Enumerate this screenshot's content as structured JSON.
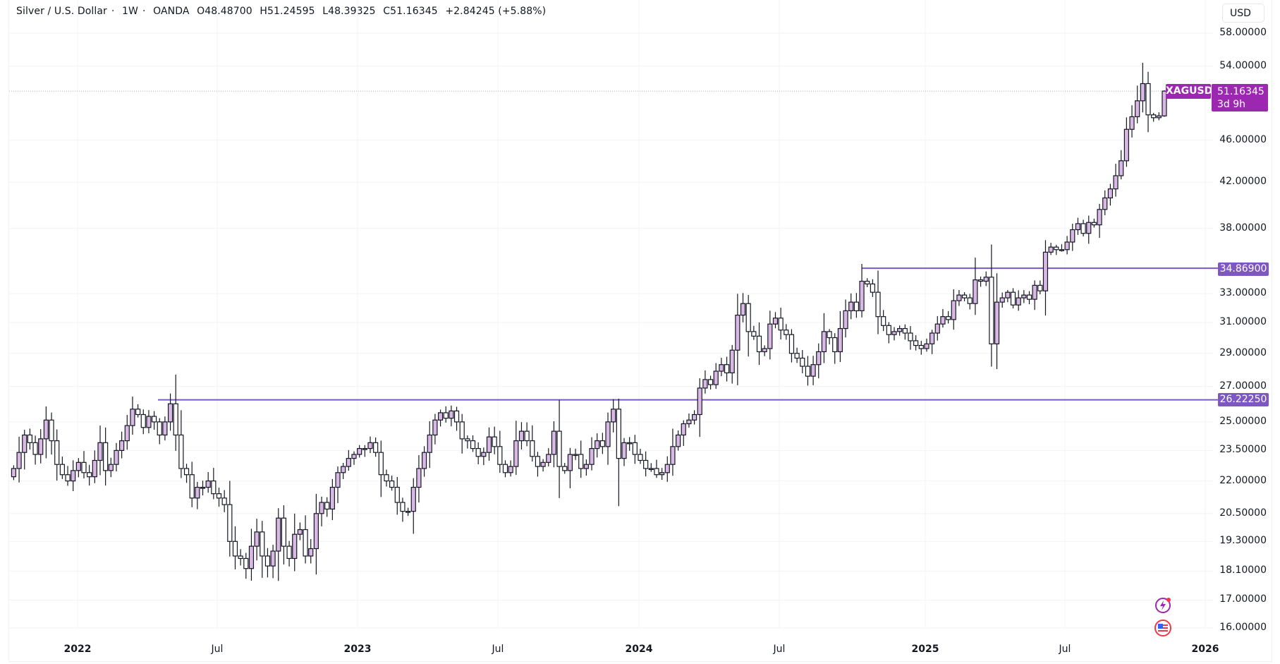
{
  "legend": {
    "symbol_name": "Silver / U.S. Dollar",
    "interval": "1W",
    "exchange": "OANDA",
    "open": "O48.48700",
    "high": "H51.24595",
    "low": "L48.39325",
    "close": "C51.16345",
    "change": "+2.84245 (+5.88%)",
    "separator": "·"
  },
  "price_axis": {
    "currency": "USD",
    "ticks": [
      "58.00000",
      "54.00000",
      "46.00000",
      "42.00000",
      "38.00000",
      "33.00000",
      "31.00000",
      "29.00000",
      "27.00000",
      "25.00000",
      "23.50000",
      "22.00000",
      "20.50000",
      "19.30000",
      "18.10000",
      "17.00000",
      "16.00000"
    ]
  },
  "time_axis": {
    "labels": [
      {
        "text": "2022",
        "year": true
      },
      {
        "text": "Jul",
        "year": false
      },
      {
        "text": "2023",
        "year": true
      },
      {
        "text": "Jul",
        "year": false
      },
      {
        "text": "2024",
        "year": true
      },
      {
        "text": "Jul",
        "year": false
      },
      {
        "text": "2025",
        "year": true
      },
      {
        "text": "Jul",
        "year": false
      },
      {
        "text": "2026",
        "year": true
      }
    ]
  },
  "last_price": {
    "symbol": "XAGUSD",
    "value": "51.16345",
    "countdown": "3d 9h",
    "color": "#9c27b0"
  },
  "horizontal_lines": [
    {
      "label": "34.86900",
      "price": 34.869,
      "color": "#7e57c2"
    },
    {
      "label": "26.22250",
      "price": 26.2225,
      "color": "#7e57c2"
    }
  ],
  "colors": {
    "up_fill": "#d9b8e6",
    "down_fill": "#ffffff",
    "outline": "#131722",
    "grid": "#f3f3f5"
  },
  "icons": [
    "lightning-alert-icon",
    "us-flag-icon"
  ],
  "chart_data": {
    "type": "candlestick",
    "title": "Silver / U.S. Dollar · 1W · OANDA",
    "xlabel": "",
    "ylabel": "USD",
    "y_scale": "log",
    "ylim": [
      15.8,
      59
    ],
    "x_range": [
      "2021-10",
      "2025-10"
    ],
    "x_tick_labels": [
      "2022",
      "Jul",
      "2023",
      "Jul",
      "2024",
      "Jul",
      "2025",
      "Jul",
      "2026"
    ],
    "y_tick_labels": [
      58,
      54,
      46,
      42,
      38,
      33,
      31,
      29,
      27,
      25,
      23.5,
      22,
      20.5,
      19.3,
      18.1,
      17,
      16
    ],
    "horizontal_levels": [
      34.869,
      26.2225
    ],
    "last": {
      "open": 48.487,
      "high": 51.24595,
      "low": 48.39325,
      "close": 51.16345,
      "change": 2.84245,
      "change_pct": 5.88
    },
    "closes": [
      22.6,
      23.4,
      24.3,
      23.9,
      23.3,
      24.1,
      25.1,
      24.0,
      22.8,
      22.3,
      22.0,
      22.5,
      22.9,
      22.4,
      22.2,
      23.0,
      23.9,
      22.5,
      22.8,
      23.5,
      24.0,
      24.8,
      25.7,
      25.4,
      24.7,
      25.3,
      25.0,
      24.3,
      25.0,
      26.0,
      24.3,
      22.6,
      22.3,
      21.2,
      21.7,
      21.7,
      22.0,
      21.4,
      21.2,
      20.9,
      19.3,
      18.7,
      18.6,
      18.2,
      19.1,
      19.7,
      18.7,
      18.3,
      18.9,
      20.3,
      19.1,
      18.6,
      19.6,
      19.8,
      18.7,
      19.0,
      20.5,
      21.0,
      20.7,
      21.7,
      22.4,
      22.7,
      23.1,
      23.3,
      23.6,
      23.6,
      23.9,
      23.4,
      22.3,
      22.0,
      21.7,
      21.0,
      20.6,
      20.6,
      21.7,
      22.6,
      23.4,
      24.3,
      25.1,
      25.5,
      25.2,
      25.6,
      25.0,
      24.1,
      24.0,
      23.6,
      23.2,
      23.4,
      24.2,
      23.7,
      22.8,
      22.4,
      22.7,
      24.0,
      24.5,
      24.0,
      23.2,
      22.7,
      22.9,
      23.3,
      24.5,
      22.7,
      22.5,
      23.3,
      23.3,
      22.6,
      22.8,
      23.6,
      24.0,
      23.7,
      25.0,
      25.7,
      23.1,
      23.9,
      23.9,
      23.3,
      23.0,
      22.6,
      22.6,
      22.3,
      22.4,
      22.8,
      23.7,
      24.3,
      24.9,
      25.1,
      25.4,
      26.9,
      27.4,
      27.1,
      27.9,
      28.3,
      27.8,
      29.2,
      31.5,
      32.3,
      30.4,
      30.1,
      29.1,
      29.3,
      30.9,
      31.3,
      30.5,
      30.2,
      29.0,
      28.7,
      28.2,
      27.6,
      28.3,
      29.1,
      30.4,
      30.0,
      29.1,
      30.6,
      31.8,
      32.4,
      31.8,
      33.9,
      33.7,
      33.1,
      31.4,
      30.8,
      30.2,
      30.4,
      30.6,
      30.3,
      29.8,
      29.5,
      29.3,
      29.6,
      30.3,
      30.9,
      31.4,
      31.2,
      32.5,
      32.9,
      32.7,
      32.3,
      34.0,
      33.9,
      34.2,
      29.6,
      32.4,
      32.7,
      33.1,
      32.2,
      32.7,
      32.9,
      32.6,
      33.6,
      33.2,
      36.1,
      36.5,
      36.3,
      36.3,
      36.9,
      37.9,
      38.4,
      37.6,
      38.5,
      38.3,
      39.6,
      40.6,
      41.4,
      42.6,
      44.0,
      47.1,
      48.4,
      50.1,
      52.0,
      48.6,
      48.3,
      48.49,
      51.16345
    ]
  }
}
